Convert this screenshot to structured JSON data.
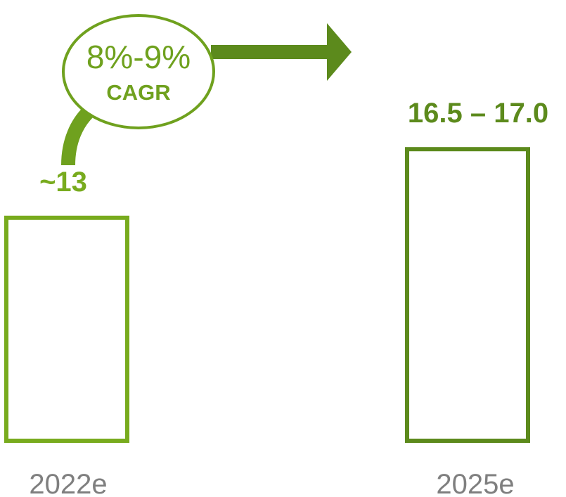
{
  "chart_data": {
    "type": "bar",
    "categories": [
      "2022e",
      "2025e"
    ],
    "values": [
      13,
      16.75
    ],
    "value_ranges": [
      [
        13,
        13
      ],
      [
        16.5,
        17.0
      ]
    ],
    "data_labels": [
      "~13",
      "16.5 – 17.0"
    ],
    "ylim": [
      0,
      18
    ],
    "grid": false,
    "bar_style": "outline",
    "title": "",
    "xlabel": "",
    "ylabel": "",
    "annotation": {
      "main": "8%-9%",
      "sub": "CAGR"
    }
  },
  "colors": {
    "bar_2022": "#78ab1e",
    "bar_2025": "#5c8a1c",
    "annotation": "#6fa11e",
    "category_text": "#7f7f7f"
  }
}
